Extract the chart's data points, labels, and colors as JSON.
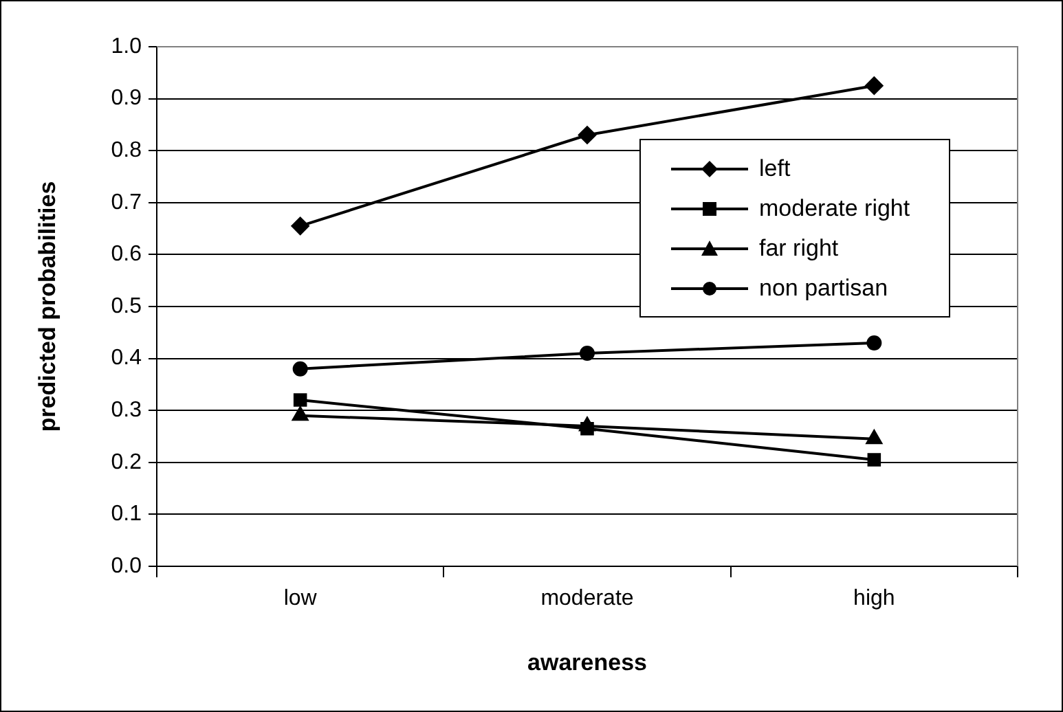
{
  "chart_data": {
    "type": "line",
    "xlabel": "awareness",
    "ylabel": "predicted probabilities",
    "categories": [
      "low",
      "moderate",
      "high"
    ],
    "ylim": [
      0,
      1
    ],
    "yticks": [
      {
        "value": 0,
        "label": "0.0"
      },
      {
        "value": 0.1,
        "label": "0.1"
      },
      {
        "value": 0.2,
        "label": "0.2"
      },
      {
        "value": 0.3,
        "label": "0.3"
      },
      {
        "value": 0.4,
        "label": "0.4"
      },
      {
        "value": 0.5,
        "label": "0.5"
      },
      {
        "value": 0.6,
        "label": "0.6"
      },
      {
        "value": 0.7,
        "label": "0.7"
      },
      {
        "value": 0.8,
        "label": "0.8"
      },
      {
        "value": 0.9,
        "label": "0.9"
      },
      {
        "value": 1,
        "label": "1.0"
      }
    ],
    "grid": "y",
    "legend": "top right",
    "line_style": "solid",
    "series": [
      {
        "name": "left",
        "color": "#000000",
        "marker": "diamond",
        "values": [
          0.655,
          0.83,
          0.925
        ]
      },
      {
        "name": "moderate right",
        "color": "#000000",
        "marker": "square",
        "values": [
          0.32,
          0.265,
          0.205
        ]
      },
      {
        "name": "far right",
        "color": "#000000",
        "marker": "triangle",
        "values": [
          0.29,
          0.27,
          0.245
        ]
      },
      {
        "name": "non partisan",
        "color": "#000000",
        "marker": "circle",
        "values": [
          0.38,
          0.41,
          0.43
        ]
      }
    ]
  }
}
